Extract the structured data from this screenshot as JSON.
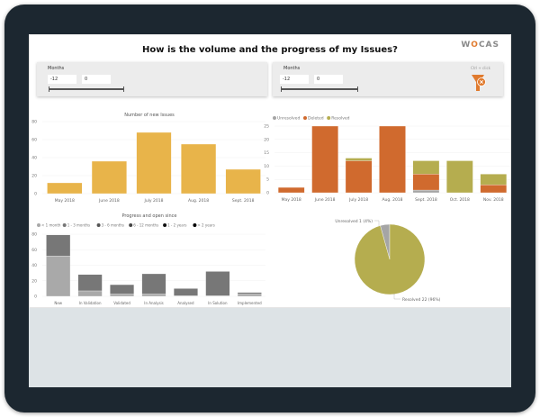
{
  "header": {
    "title": "How is the volume and the progress of my Issues?",
    "logo": "WOCAS"
  },
  "filters": [
    {
      "label": "Months",
      "from": "-12",
      "to": "0"
    },
    {
      "label": "Months",
      "from": "-12",
      "to": "0",
      "hint": "Ctrl + click"
    }
  ],
  "colors": {
    "frame": "#1c2730",
    "new_issues": "#e8b44a",
    "unresolved": "#a5a5a5",
    "deleted": "#d06a2e",
    "resolved": "#b5ad4f",
    "lt1": "#a9a9a9",
    "m13": "#777777"
  },
  "chart_data": [
    {
      "type": "bar",
      "title": "Number of new Issues",
      "categories": [
        "May 2018",
        "June 2018",
        "July 2018",
        "Aug. 2018",
        "Sept. 2018"
      ],
      "values": [
        12,
        36,
        68,
        55,
        27
      ],
      "ylim": [
        0,
        80
      ],
      "yticks": [
        0,
        20,
        40,
        60,
        80
      ]
    },
    {
      "type": "bar",
      "stacked": true,
      "categories": [
        "May 2018",
        "June 2018",
        "July 2018",
        "Aug. 2018",
        "Sept. 2018",
        "Oct. 2018",
        "Nov. 2018"
      ],
      "ylim": [
        0,
        25
      ],
      "yticks": [
        0,
        5,
        10,
        15,
        20,
        25
      ],
      "legend": "top-left",
      "series": [
        {
          "name": "Unresolved",
          "values": [
            0,
            0,
            0,
            0,
            1,
            0,
            0
          ]
        },
        {
          "name": "Deleted",
          "values": [
            2,
            25,
            12,
            25,
            6,
            0,
            3
          ]
        },
        {
          "name": "Resolved",
          "values": [
            0,
            0,
            1,
            0,
            5,
            12,
            4
          ]
        }
      ]
    },
    {
      "type": "bar",
      "stacked": true,
      "title": "Progress and open since",
      "categories": [
        "New",
        "In Validation",
        "Validated",
        "In Analysis",
        "Analysed",
        "In Solution",
        "Implemented"
      ],
      "ylim": [
        0,
        80
      ],
      "yticks": [
        0,
        20,
        40,
        60,
        80
      ],
      "legend": "top-left",
      "series": [
        {
          "name": "< 1 month",
          "values": [
            52,
            7,
            3,
            3,
            1,
            1,
            3
          ]
        },
        {
          "name": "1 - 3  months",
          "values": [
            27,
            21,
            12,
            26,
            9,
            31,
            2
          ]
        },
        {
          "name": "3 - 6 months",
          "values": [
            0,
            0,
            0,
            0,
            0,
            0,
            0
          ]
        },
        {
          "name": "6 - 12 months",
          "values": [
            0,
            0,
            0,
            0,
            0,
            0,
            0
          ]
        },
        {
          "name": "1 - 2 years",
          "values": [
            0,
            0,
            0,
            0,
            0,
            0,
            0
          ]
        },
        {
          "name": "> 2 years",
          "values": [
            0,
            0,
            0,
            0,
            0,
            0,
            0
          ]
        }
      ]
    },
    {
      "type": "pie",
      "slices": [
        {
          "name": "Unresolved",
          "value": 1,
          "label": "Unresolved 1 (4%)"
        },
        {
          "name": "Resolved",
          "value": 22,
          "label": "Resolved 22 (96%)"
        }
      ]
    }
  ]
}
